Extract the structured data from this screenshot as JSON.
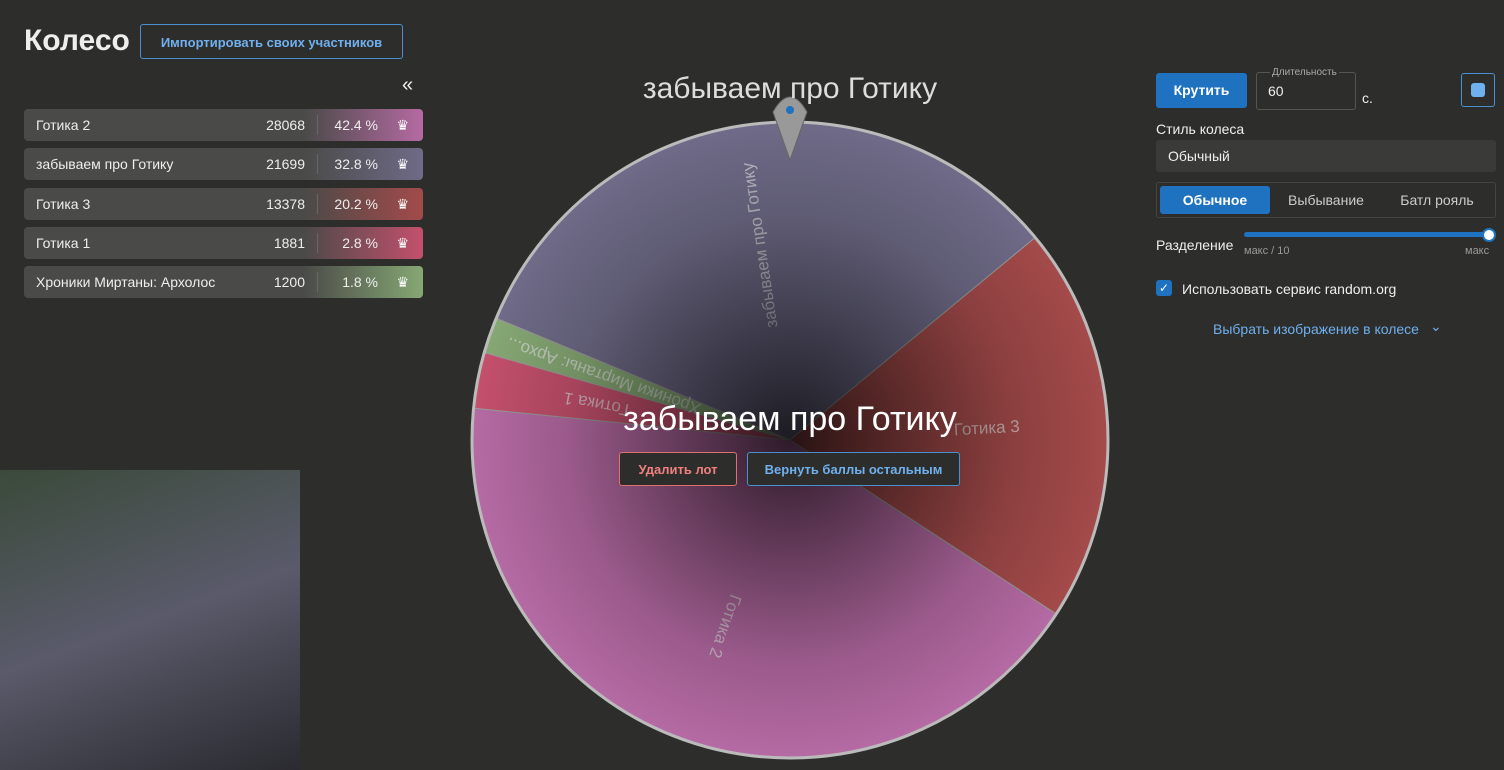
{
  "header": {
    "title": "Колесо",
    "import_button": "Импортировать своих участников"
  },
  "participants": [
    {
      "name": "Готика 2",
      "amount": 28068,
      "percent": "42.4 %",
      "color": "#b56aa3"
    },
    {
      "name": "забываем про Готику",
      "amount": 21699,
      "percent": "32.8 %",
      "color": "#6f6b88"
    },
    {
      "name": "Готика 3",
      "amount": 13378,
      "percent": "20.2 %",
      "color": "#a44a4a"
    },
    {
      "name": "Готика 1",
      "amount": 1881,
      "percent": "2.8 %",
      "color": "#c4506c"
    },
    {
      "name": "Хроники Миртаны: Архолос",
      "amount": 1200,
      "percent": "1.8 %",
      "color": "#86a874"
    }
  ],
  "wheel": {
    "winner_title": "забываем про Готику",
    "center_text": "забываем про Готику",
    "delete_button": "Удалить лот",
    "return_button": "Вернуть баллы остальным",
    "labels": [
      "Готика 2",
      "забываем про Готику",
      "Готика 3",
      "Готика 1",
      "Хроники Миртаны: Архо..."
    ]
  },
  "controls": {
    "spin_button": "Крутить",
    "duration_label": "Длительность",
    "duration_value": "60",
    "duration_unit": "с.",
    "style_label": "Стиль колеса",
    "style_value": "Обычный",
    "modes": [
      "Обычное",
      "Выбывание",
      "Батл рояль"
    ],
    "split_label": "Разделение",
    "split_min": "макс / 10",
    "split_max": "макс",
    "random_org": "Использовать сервис random.org",
    "image_link": "Выбрать изображение в колесе"
  }
}
